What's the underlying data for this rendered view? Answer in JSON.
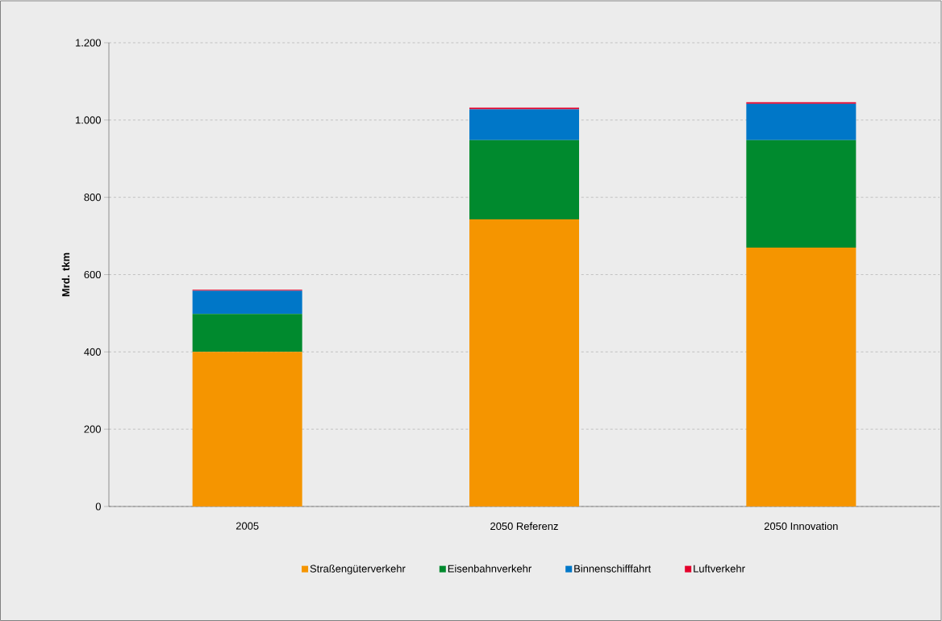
{
  "chart_data": {
    "type": "bar",
    "stacked": true,
    "ylabel": "Mrd. tkm",
    "categories": [
      "2005",
      "2050 Referenz",
      "2050 Innovation"
    ],
    "series": [
      {
        "name": "Straßengüterverkehr",
        "color": "#f59500",
        "values": [
          400,
          743,
          670
        ]
      },
      {
        "name": "Eisenbahnverkehr",
        "color": "#008a2e",
        "values": [
          98,
          205,
          278
        ]
      },
      {
        "name": "Binnenschifffahrt",
        "color": "#0077c8",
        "values": [
          60,
          80,
          94
        ]
      },
      {
        "name": "Luftverkehr",
        "color": "#e4002b",
        "values": [
          3,
          4,
          4
        ]
      }
    ],
    "ylim": [
      0,
      1200
    ],
    "yticks": [
      0,
      200,
      400,
      600,
      800,
      {
        "value": 1000,
        "label": "1.000"
      },
      {
        "value": 1200,
        "label": "1.200"
      }
    ],
    "grid": "y",
    "legend": "bottom"
  }
}
